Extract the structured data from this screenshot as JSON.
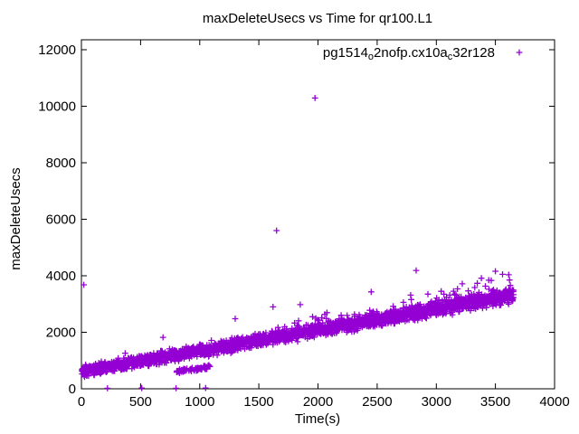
{
  "title": "maxDeleteUsecs vs Time for qr100.L1",
  "x_axis": {
    "label": "Time(s)",
    "ticks": [
      0,
      500,
      1000,
      1500,
      2000,
      2500,
      3000,
      3500,
      4000
    ],
    "range": [
      0,
      4000
    ]
  },
  "y_axis": {
    "label": "maxDeleteUsecs",
    "ticks": [
      0,
      2000,
      4000,
      6000,
      8000,
      10000,
      12000
    ],
    "range": [
      0,
      12352
    ]
  },
  "legend": {
    "marker": "plus",
    "color": "#9400d3",
    "label_segments": [
      {
        "text": "pg1514"
      },
      {
        "text": "o",
        "subscript": true
      },
      {
        "text": "2nofp.cx10a"
      },
      {
        "text": "c",
        "subscript": true
      },
      {
        "text": "32r128"
      }
    ]
  },
  "chart_data": {
    "type": "scatter",
    "title": "maxDeleteUsecs vs Time for qr100.L1",
    "xlabel": "Time(s)",
    "ylabel": "maxDeleteUsecs",
    "xlim": [
      0,
      4000
    ],
    "ylim": [
      0,
      12352
    ],
    "grid": false,
    "legend_position": "top-right-inside",
    "series": [
      {
        "name": "pg1514_o2nofp.cx10a_c32r128",
        "marker": "plus",
        "color": "#9400d3",
        "seed": 42,
        "trend": {
          "description": "dense linear band of per-second samples rising steadily",
          "intercept": 620,
          "slope": 0.734,
          "x_start": 2,
          "x_end": 3655
        },
        "band": {
          "count": 2700,
          "sigma_base": 190,
          "sigma_growth": 0.018,
          "upper_tail": {
            "x_start": 1600,
            "prob_base": 0.02,
            "prob_growth": 0.06,
            "max_extra": 800
          }
        },
        "low_cluster": {
          "description": "detached cluster below the main band",
          "x_min": 805,
          "x_max": 1090,
          "y_min": 520,
          "y_max": 860,
          "count": 65
        },
        "near_zero_points": [
          [
            220,
            20
          ],
          [
            510,
            25
          ],
          [
            800,
            20
          ],
          [
            1050,
            30
          ]
        ],
        "outliers": [
          [
            20,
            3680
          ],
          [
            370,
            1260
          ],
          [
            690,
            1820
          ],
          [
            1300,
            2480
          ],
          [
            1620,
            2900
          ],
          [
            1650,
            5600
          ],
          [
            1850,
            2980
          ],
          [
            1975,
            10290
          ],
          [
            2450,
            3430
          ],
          [
            2830,
            4190
          ],
          [
            3500,
            4160
          ],
          [
            3560,
            4050
          ]
        ]
      }
    ]
  }
}
